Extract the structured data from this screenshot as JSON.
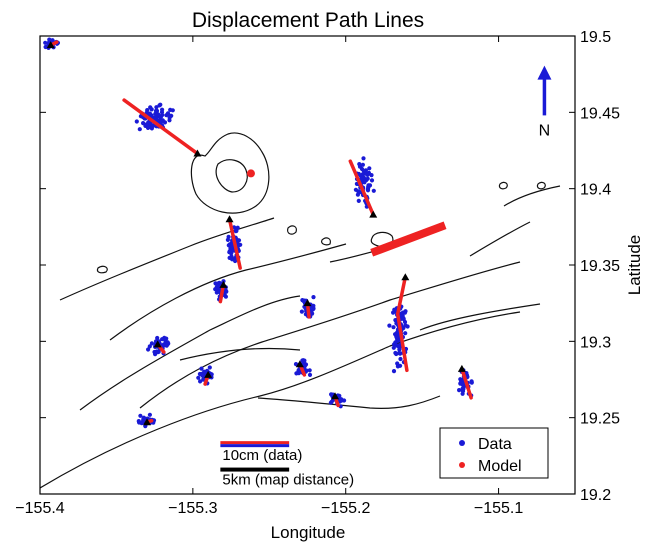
{
  "chart_data": {
    "type": "scatter",
    "title": "Displacement Path Lines",
    "xlabel": "Longitude",
    "ylabel": "Latitude",
    "xlim": [
      -155.4,
      -155.05
    ],
    "ylim": [
      19.2,
      19.5
    ],
    "xticks": [
      -155.4,
      -155.3,
      -155.2,
      -155.1
    ],
    "xtick_labels": [
      "−155.4",
      "−155.3",
      "−155.2",
      "−155.1"
    ],
    "yticks": [
      19.2,
      19.25,
      19.3,
      19.35,
      19.4,
      19.45,
      19.5
    ],
    "ytick_labels": [
      "19.2",
      "19.25",
      "19.3",
      "19.35",
      "19.4",
      "19.45",
      "19.5"
    ],
    "ytick_side": "right",
    "grid": false,
    "legend": {
      "position": "bottom-right",
      "entries": [
        {
          "label": "Data",
          "color": "#1a1ad6"
        },
        {
          "label": "Model",
          "color": "#ee2222"
        }
      ]
    },
    "north_arrow": {
      "label": "N",
      "color": "#1a1ad6",
      "x": -155.07,
      "y0": 19.448,
      "y1": 19.478
    },
    "scale_bars": [
      {
        "label": "10cm (data)",
        "colors": [
          "#ee2222",
          "#1a1ad6"
        ],
        "x0": -155.282,
        "x1": -155.237,
        "y": 19.232
      },
      {
        "label": "5km (map distance)",
        "colors": [
          "#000000"
        ],
        "x0": -155.282,
        "x1": -155.237,
        "y": 19.216
      }
    ],
    "source": {
      "x": -155.262,
      "y": 19.41,
      "color": "#ee2222"
    },
    "dike": {
      "x0": -155.183,
      "y0": 19.358,
      "x1": -155.135,
      "y1": 19.376,
      "color": "#ee2222"
    },
    "stations": [
      {
        "x": -155.393,
        "y": 19.494,
        "path": [
          [
            -155.393,
            19.494
          ],
          [
            -155.389,
            19.496
          ]
        ],
        "cloud": [
          -155.392,
          19.495,
          0.005,
          0.003
        ],
        "n": 26
      },
      {
        "x": -155.297,
        "y": 19.423,
        "path": [
          [
            -155.297,
            19.423
          ],
          [
            -155.345,
            19.458
          ]
        ],
        "cloud": [
          -155.326,
          19.447,
          0.013,
          0.009
        ],
        "n": 85
      },
      {
        "x": -155.182,
        "y": 19.383,
        "path": [
          [
            -155.182,
            19.383
          ],
          [
            -155.197,
            19.418
          ]
        ],
        "cloud": [
          -155.188,
          19.403,
          0.005,
          0.014
        ],
        "n": 60
      },
      {
        "x": -155.276,
        "y": 19.38,
        "path": [
          [
            -155.276,
            19.38
          ],
          [
            -155.269,
            19.348
          ]
        ],
        "cloud": [
          -155.273,
          19.362,
          0.004,
          0.013
        ],
        "n": 55
      },
      {
        "x": -155.28,
        "y": 19.337,
        "path": [
          [
            -155.28,
            19.337
          ],
          [
            -155.282,
            19.326
          ]
        ],
        "cloud": [
          -155.281,
          19.334,
          0.005,
          0.006
        ],
        "n": 40
      },
      {
        "x": -155.225,
        "y": 19.325,
        "path": [
          [
            -155.225,
            19.325
          ],
          [
            -155.224,
            19.316
          ]
        ],
        "cloud": [
          -155.225,
          19.322,
          0.005,
          0.006
        ],
        "n": 40
      },
      {
        "x": -155.161,
        "y": 19.342,
        "path": [
          [
            -155.161,
            19.342
          ],
          [
            -155.166,
            19.318
          ],
          [
            -155.16,
            19.281
          ]
        ],
        "cloud": [
          -155.165,
          19.305,
          0.005,
          0.021
        ],
        "n": 95
      },
      {
        "x": -155.323,
        "y": 19.298,
        "path": [
          [
            -155.323,
            19.298
          ],
          [
            -155.319,
            19.293
          ]
        ],
        "cloud": [
          -155.322,
          19.297,
          0.007,
          0.006
        ],
        "n": 45
      },
      {
        "x": -155.29,
        "y": 19.278,
        "path": [
          [
            -155.29,
            19.278
          ],
          [
            -155.292,
            19.272
          ]
        ],
        "cloud": [
          -155.291,
          19.277,
          0.005,
          0.005
        ],
        "n": 35
      },
      {
        "x": -155.23,
        "y": 19.285,
        "path": [
          [
            -155.23,
            19.285
          ],
          [
            -155.227,
            19.278
          ]
        ],
        "cloud": [
          -155.228,
          19.283,
          0.005,
          0.006
        ],
        "n": 40
      },
      {
        "x": -155.207,
        "y": 19.264,
        "path": [
          [
            -155.207,
            19.264
          ],
          [
            -155.205,
            19.258
          ]
        ],
        "cloud": [
          -155.206,
          19.262,
          0.005,
          0.004
        ],
        "n": 35
      },
      {
        "x": -155.124,
        "y": 19.282,
        "path": [
          [
            -155.124,
            19.282
          ],
          [
            -155.118,
            19.263
          ]
        ],
        "cloud": [
          -155.122,
          19.273,
          0.004,
          0.008
        ],
        "n": 45
      },
      {
        "x": -155.33,
        "y": 19.247,
        "path": [
          [
            -155.33,
            19.247
          ],
          [
            -155.327,
            19.248
          ]
        ],
        "cloud": [
          -155.331,
          19.248,
          0.005,
          0.004
        ],
        "n": 35
      }
    ]
  }
}
